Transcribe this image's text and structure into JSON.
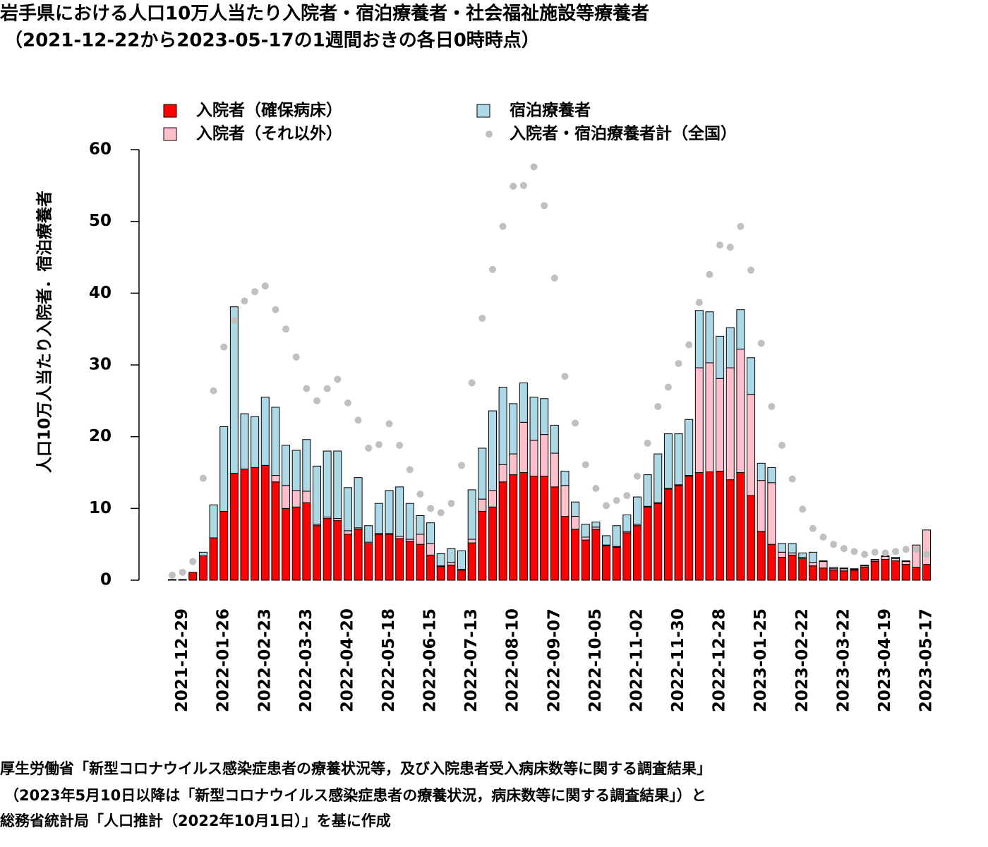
{
  "chart_data": {
    "type": "bar",
    "stacked": true,
    "title": "岩手県における人口10万人当たり入院者・宿泊療養者・社会福祉施設等療養者",
    "subtitle": "（2021-12-22から2023-05-17の1週間おきの各日0時時点）",
    "y_label": "人口10万人当たり入院者．宿泊療養者",
    "source": [
      "厚生労働省「新型コロナウイルス感染症患者の療養状況等，及び入院患者受入病床数等に関する調査結果」",
      "（2023年5月10日以降は「新型コロナウイルス感染症患者の療養状況，病床数等に関する調査結果」）と",
      "総務省統計局「人口推計（2022年10月1日）」を基に作成"
    ],
    "categories": [
      null,
      "2021-12-29",
      null,
      null,
      null,
      "2022-01-26",
      null,
      null,
      null,
      "2022-02-23",
      null,
      null,
      null,
      "2022-03-23",
      null,
      null,
      null,
      "2022-04-20",
      null,
      null,
      null,
      "2022-05-18",
      null,
      null,
      null,
      "2022-06-15",
      null,
      null,
      null,
      "2022-07-13",
      null,
      null,
      null,
      "2022-08-10",
      null,
      null,
      null,
      "2022-09-07",
      null,
      null,
      null,
      "2022-10-05",
      null,
      null,
      null,
      "2022-11-02",
      null,
      null,
      null,
      "2022-11-30",
      null,
      null,
      null,
      "2022-12-28",
      null,
      null,
      null,
      "2023-01-25",
      null,
      null,
      null,
      "2023-02-22",
      null,
      null,
      null,
      "2023-03-22",
      null,
      null,
      null,
      "2023-04-19",
      null,
      null,
      null,
      "2023-05-17"
    ],
    "series": [
      {
        "name": "入院者（確保病床）",
        "color": "#ff0000",
        "type": "bar",
        "values": [
          0.1,
          0.1,
          1.1,
          3.4,
          5.9,
          9.6,
          14.9,
          15.5,
          15.7,
          16.0,
          13.7,
          10.0,
          10.2,
          10.8,
          7.6,
          8.6,
          8.3,
          6.4,
          7.1,
          5.1,
          6.4,
          6.4,
          5.8,
          5.4,
          5.0,
          3.5,
          1.9,
          2.1,
          1.4,
          5.2,
          9.6,
          10.2,
          13.7,
          14.7,
          15.0,
          14.5,
          14.5,
          13.0,
          8.9,
          7.1,
          5.6,
          7.1,
          4.8,
          4.6,
          6.6,
          7.6,
          10.2,
          10.7,
          12.7,
          13.2,
          14.5,
          15.0,
          15.1,
          15.2,
          14.0,
          15.0,
          11.8,
          6.8,
          5.0,
          3.2,
          3.5,
          3.0,
          2.0,
          1.7,
          1.4,
          1.3,
          1.4,
          1.8,
          2.6,
          2.9,
          2.7,
          2.2,
          1.8,
          2.2
        ]
      },
      {
        "name": "入院者（それ以外）",
        "color": "#ffc0cb",
        "type": "bar",
        "values": [
          0,
          0,
          0,
          0,
          0,
          0,
          0,
          0,
          0,
          0,
          0.9,
          3.2,
          2.3,
          1.6,
          0.2,
          0.2,
          0.3,
          0.5,
          0.2,
          0.2,
          0.1,
          0.1,
          0.3,
          0.3,
          1.4,
          1.6,
          0.1,
          0.4,
          0.1,
          0.5,
          1.7,
          2.3,
          2.4,
          2.9,
          7.0,
          5.0,
          5.8,
          4.7,
          4.3,
          1.8,
          0.4,
          0.3,
          0.1,
          0.1,
          0.2,
          0.2,
          0.1,
          0.1,
          0.1,
          0.1,
          0.1,
          14.6,
          15.2,
          12.9,
          15.6,
          17.2,
          14.1,
          7.1,
          8.6,
          0.7,
          0.3,
          0.2,
          0.5,
          0.9,
          0.2,
          0.3,
          0.1,
          0.2,
          0.2,
          0.4,
          0.3,
          0.4,
          3.1,
          4.8
        ]
      },
      {
        "name": "宿泊療養者",
        "color": "#add8e6",
        "type": "bar",
        "values": [
          0,
          0,
          0,
          0.5,
          4.6,
          11.8,
          23.2,
          7.7,
          7.1,
          9.5,
          9.5,
          5.6,
          5.6,
          7.2,
          8.1,
          9.2,
          9.4,
          6.0,
          7.0,
          2.3,
          4.2,
          6.0,
          6.9,
          5.0,
          2.6,
          2.9,
          1.7,
          1.9,
          2.6,
          6.9,
          7.1,
          11.1,
          10.8,
          7.0,
          5.5,
          6.0,
          5.0,
          3.9,
          2.0,
          2.0,
          1.8,
          0.7,
          1.3,
          2.9,
          2.3,
          3.8,
          4.4,
          6.8,
          7.6,
          7.1,
          7.8,
          8.0,
          7.1,
          5.9,
          5.6,
          5.5,
          5.1,
          2.4,
          2.1,
          1.2,
          1.3,
          0.6,
          1.4,
          0.1,
          0.2,
          0.1,
          0.1,
          0.1,
          0.1,
          0.1,
          0.2,
          0.1,
          0,
          0
        ]
      },
      {
        "name": "入院者・宿泊療養者計（全国）",
        "color": "#c0c0c0",
        "type": "scatter",
        "values": [
          0.7,
          1.1,
          2.6,
          14.2,
          26.4,
          32.5,
          36.2,
          38.9,
          40.2,
          41.0,
          37.7,
          35.0,
          31.1,
          26.7,
          25.0,
          26.7,
          28.0,
          24.7,
          22.3,
          18.4,
          18.9,
          21.8,
          18.8,
          15.4,
          12.0,
          10.0,
          9.4,
          10.7,
          16.0,
          27.5,
          36.5,
          43.3,
          49.3,
          54.9,
          55.0,
          57.6,
          52.2,
          42.1,
          28.4,
          21.9,
          16.1,
          12.8,
          10.4,
          11.1,
          11.8,
          14.5,
          19.1,
          24.2,
          26.9,
          30.2,
          32.8,
          38.7,
          42.6,
          46.7,
          46.4,
          49.3,
          43.2,
          33.0,
          24.2,
          18.8,
          14.1,
          9.9,
          7.2,
          6.0,
          5.0,
          4.4,
          4.0,
          3.6,
          3.9,
          3.8,
          4.0,
          4.3,
          4.3,
          3.6
        ]
      }
    ],
    "ylim": [
      0,
      60
    ],
    "yticks": [
      0,
      10,
      20,
      30,
      40,
      50,
      60
    ]
  }
}
